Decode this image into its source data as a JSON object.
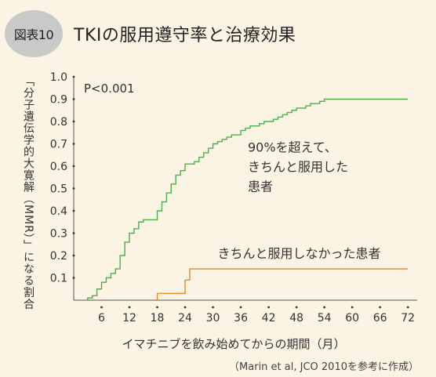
{
  "figure": {
    "badge": "図表10",
    "title": "TKIの服用遵守率と治療効果",
    "source": "（Marin et al, JCO 2010を参考に作成）"
  },
  "chart_data": {
    "type": "line",
    "xlabel": "イマチニブを飲み始めてからの期間（月）",
    "ylabel": "「分子遺伝学的大寛解（MMR）」になる割合",
    "xlim": [
      0,
      72
    ],
    "ylim": [
      0,
      1.0
    ],
    "xticks": [
      6,
      12,
      18,
      24,
      30,
      36,
      42,
      48,
      54,
      60,
      66,
      72
    ],
    "yticks": [
      0.1,
      0.2,
      0.3,
      0.4,
      0.5,
      0.6,
      0.7,
      0.8,
      0.9,
      1.0
    ],
    "grid": false,
    "annotations": [
      {
        "text": "P<0.001"
      },
      {
        "text": "90%を超えて、\nきちんと服用した\n患者"
      },
      {
        "text": "きちんと服用しなかった患者"
      }
    ],
    "series": [
      {
        "color": "#4cb04c",
        "x": [
          3,
          4,
          5,
          6,
          7,
          8,
          9,
          10,
          11,
          12,
          13,
          14,
          15,
          16,
          17,
          18,
          19,
          20,
          21,
          22,
          23,
          24,
          25,
          26,
          27,
          28,
          29,
          30,
          31,
          32,
          33,
          34,
          35,
          36,
          37,
          38,
          39,
          40,
          41,
          42,
          43,
          44,
          45,
          46,
          47,
          48,
          49,
          50,
          51,
          52,
          53,
          54,
          55,
          72
        ],
        "y": [
          0.01,
          0.02,
          0.05,
          0.08,
          0.1,
          0.12,
          0.14,
          0.2,
          0.26,
          0.3,
          0.32,
          0.35,
          0.36,
          0.36,
          0.36,
          0.4,
          0.44,
          0.48,
          0.52,
          0.56,
          0.58,
          0.61,
          0.61,
          0.62,
          0.64,
          0.66,
          0.68,
          0.7,
          0.71,
          0.72,
          0.73,
          0.74,
          0.74,
          0.76,
          0.77,
          0.78,
          0.78,
          0.79,
          0.8,
          0.8,
          0.81,
          0.82,
          0.83,
          0.84,
          0.85,
          0.86,
          0.86,
          0.87,
          0.88,
          0.88,
          0.89,
          0.9,
          0.9,
          0.9
        ]
      },
      {
        "color": "#e08a2a",
        "x": [
          18,
          24,
          25,
          26,
          72
        ],
        "y": [
          0.03,
          0.09,
          0.14,
          0.14,
          0.14
        ]
      }
    ]
  }
}
